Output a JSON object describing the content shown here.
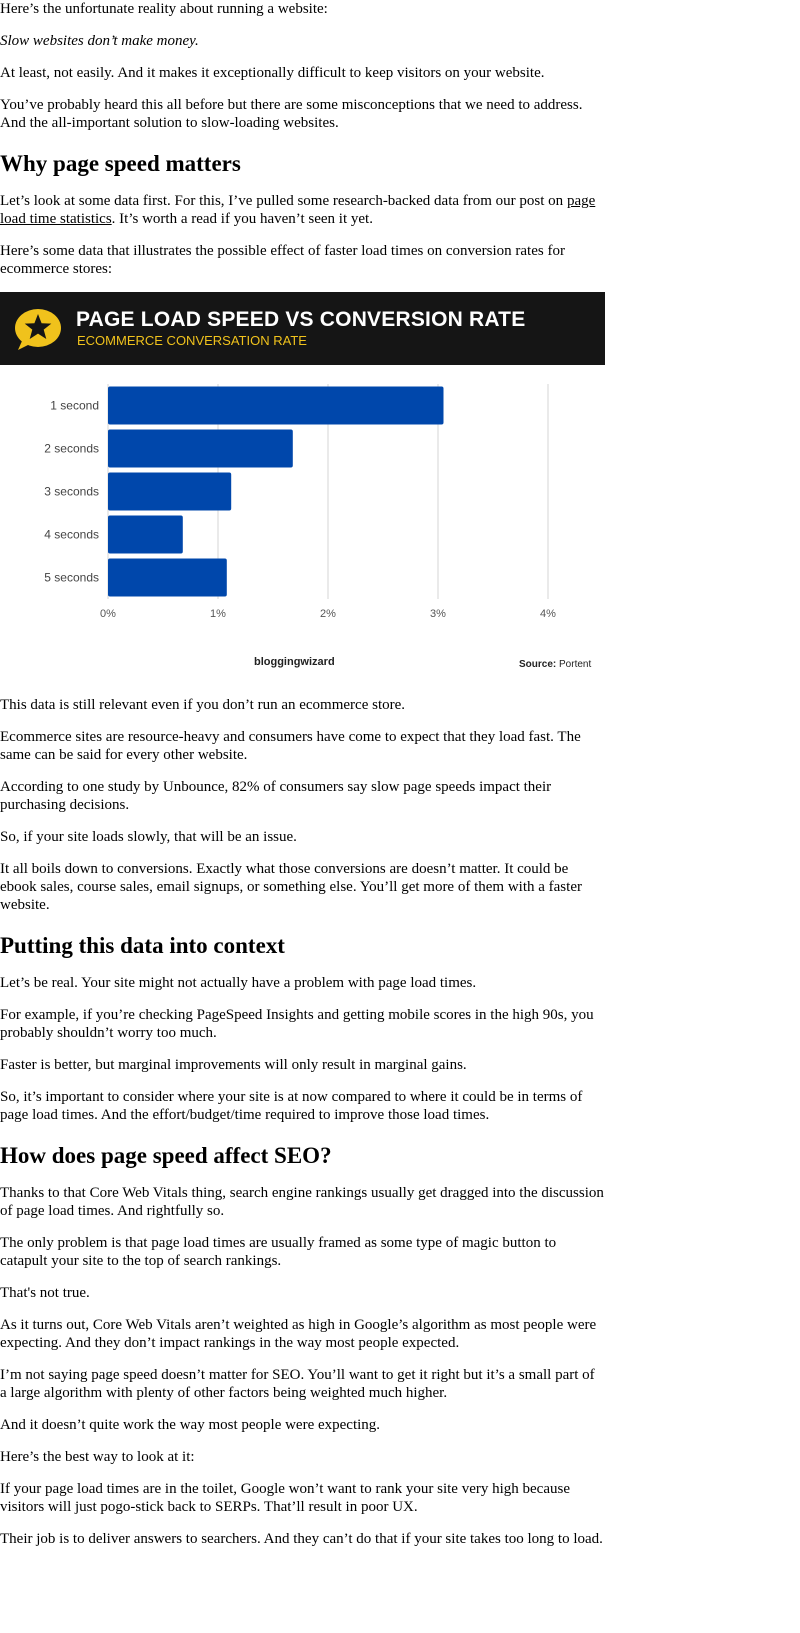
{
  "intro": {
    "p1": "Here’s the unfortunate reality about running a website:",
    "p2": "Slow websites don’t make money.",
    "p3": "At least, not easily. And it makes it exceptionally difficult to keep visitors on your website.",
    "p4": "You’ve probably heard this all before but there are some misconceptions that we need to address. And the all-important solution to slow-loading websites."
  },
  "section1": {
    "heading": "Why page speed matters",
    "p1_before": "Let’s look at some data first. For this, I’ve pulled some research-backed data from our post on ",
    "p1_link": "page load time statistics",
    "p1_after": ". It’s worth a read if you haven’t seen it yet.",
    "p2": "Here’s some data that illustrates the possible effect of faster load times on conversion rates for ecommerce stores:"
  },
  "figure": {
    "brand": "bloggingwizard",
    "source_label": "Source:",
    "source_value": "Portent",
    "colors": {
      "header_bg": "#151515",
      "title": "#ffffff",
      "subtitle": "#f0c21c",
      "bar": "#0047ab",
      "badge": "#f0c21c"
    },
    "badge_icon": "star-badge-icon"
  },
  "chart_data": {
    "type": "bar",
    "orientation": "horizontal",
    "title": "PAGE LOAD SPEED VS CONVERSION RATE",
    "subtitle": "ECOMMERCE CONVERSATION RATE",
    "categories": [
      "1 second",
      "2 seconds",
      "3 seconds",
      "4 seconds",
      "5 seconds"
    ],
    "values": [
      3.05,
      1.68,
      1.12,
      0.68,
      1.08
    ],
    "xlim": [
      0,
      4
    ],
    "xticks": [
      "0%",
      "1%",
      "2%",
      "3%",
      "4%"
    ],
    "xlabel": "",
    "ylabel": "",
    "grid": true
  },
  "section1_after": {
    "p1": "This data is still relevant even if you don’t run an ecommerce store.",
    "p2": "Ecommerce sites are resource-heavy and consumers have come to expect that they load fast. The same can be said for every other website.",
    "p3": "According to one study by Unbounce, 82% of consumers say slow page speeds impact their purchasing decisions.",
    "p4": "So, if your site loads slowly, that will be an issue.",
    "p5": "It all boils down to conversions. Exactly what those conversions are doesn’t matter. It could be ebook sales, course sales, email signups, or something else. You’ll get more of them with a faster website."
  },
  "section2": {
    "heading": "Putting this data into context",
    "p1": "Let’s be real. Your site might not actually have a problem with page load times.",
    "p2": "For example, if you’re checking PageSpeed Insights and getting mobile scores in the high 90s, you probably shouldn’t worry too much.",
    "p3": "Faster is better, but marginal improvements will only result in marginal gains.",
    "p4": "So, it’s important to consider where your site is at now compared to where it could be in terms of page load times. And the effort/budget/time required to improve those load times."
  },
  "section3": {
    "heading": "How does page speed affect SEO?",
    "p1": "Thanks to that Core Web Vitals thing, search engine rankings usually get dragged into the discussion of page load times. And rightfully so.",
    "p2": "The only problem is that page load times are usually framed as some type of magic button to catapult your site to the top of search rankings.",
    "p3": "That's not true.",
    "p4": "As it turns out, Core Web Vitals aren’t weighted as high in Google’s algorithm as most people were expecting. And they don’t impact rankings in the way most people expected.",
    "p5": "I’m not saying page speed doesn’t matter for SEO. You’ll want to get it right but it’s a small part of a large algorithm with plenty of other factors being weighted much higher.",
    "p6": "And it doesn’t quite work the way most people were expecting.",
    "p7": "Here’s the best way to look at it:",
    "p8": "If your page load times are in the toilet, Google won’t want to rank your site very high because visitors will just pogo-stick back to SERPs. That’ll result in poor UX.",
    "p9": "Their job is to deliver answers to searchers. And they can’t do that if your site takes too long to load."
  }
}
